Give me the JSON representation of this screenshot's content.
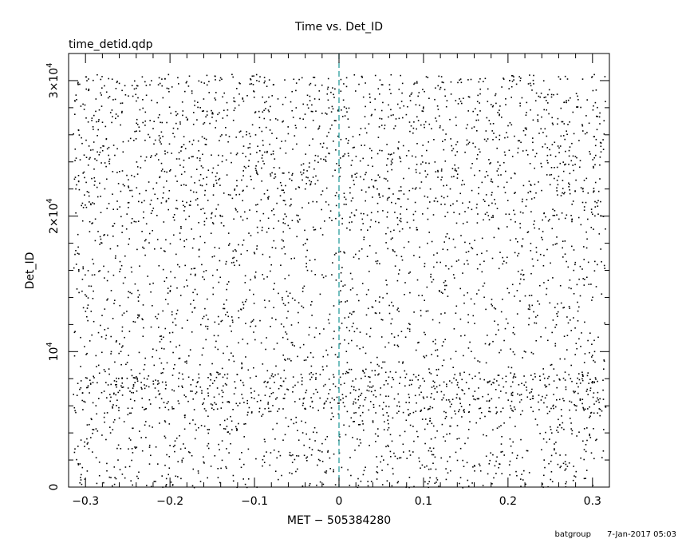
{
  "chart_data": {
    "type": "scatter",
    "title": "Time vs. Det_ID",
    "subtitle": "time_detid.qdp",
    "xlabel": "MET − 505384280",
    "ylabel": "Det_ID",
    "xlim": [
      -0.32,
      0.32
    ],
    "ylim": [
      0,
      32000
    ],
    "x_ticks": [
      {
        "value": -0.3,
        "label": "−0.3"
      },
      {
        "value": -0.2,
        "label": "−0.2"
      },
      {
        "value": -0.1,
        "label": "−0.1"
      },
      {
        "value": 0,
        "label": "0"
      },
      {
        "value": 0.1,
        "label": "0.1"
      },
      {
        "value": 0.2,
        "label": "0.2"
      },
      {
        "value": 0.3,
        "label": "0.3"
      }
    ],
    "y_ticks": [
      {
        "value": 0,
        "label": "0",
        "exp": ""
      },
      {
        "value": 10000,
        "label": "10",
        "exp": "4"
      },
      {
        "value": 20000,
        "label": "2×10",
        "exp": "4"
      },
      {
        "value": 30000,
        "label": "3×10",
        "exp": "4"
      }
    ],
    "reference_line": {
      "x": 0,
      "color": "#2a9d9d",
      "style": "dashed"
    },
    "marker_color": "#000000",
    "point_density": "≈ 4000 events, dense bands near 6000–8000 and 20000–30000 Det_ID",
    "points_note": "individual events rendered from generated sample",
    "grid": false,
    "legend": "none"
  },
  "footer": {
    "left": "batgroup",
    "right": "7-Jan-2017 05:03"
  }
}
